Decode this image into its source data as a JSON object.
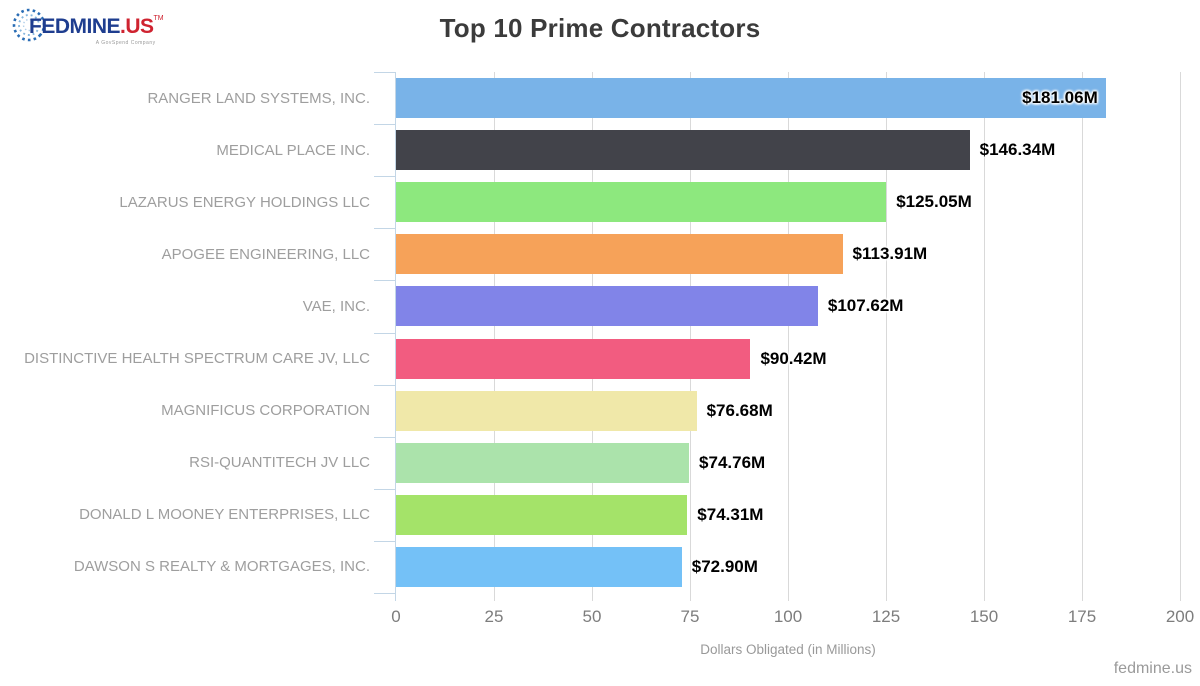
{
  "logo": {
    "brand_primary": "FEDMINE",
    "brand_suffix": ".US",
    "trademark": "TM",
    "tagline": "A GovSpend Company"
  },
  "footer": {
    "watermark": "fedmine.us"
  },
  "chart_data": {
    "type": "bar",
    "orientation": "horizontal",
    "title": "Top 10 Prime Contractors",
    "xlabel": "Dollars Obligated (in Millions)",
    "ylabel": "",
    "xlim": [
      0,
      200
    ],
    "x_ticks": [
      0,
      25,
      50,
      75,
      100,
      125,
      150,
      175,
      200
    ],
    "grid": "vertical",
    "legend": "none",
    "categories": [
      "RANGER LAND SYSTEMS, INC.",
      "MEDICAL PLACE INC.",
      "LAZARUS ENERGY HOLDINGS LLC",
      "APOGEE ENGINEERING, LLC",
      "VAE, INC.",
      "DISTINCTIVE HEALTH SPECTRUM CARE JV, LLC",
      "MAGNIFICUS CORPORATION",
      "RSI-QUANTITECH JV LLC",
      "DONALD L MOONEY ENTERPRISES, LLC",
      "DAWSON S REALTY & MORTGAGES, INC."
    ],
    "values": [
      181.06,
      146.34,
      125.05,
      113.91,
      107.62,
      90.42,
      76.68,
      74.76,
      74.31,
      72.9
    ],
    "value_labels": [
      "$181.06M",
      "$146.34M",
      "$125.05M",
      "$113.91M",
      "$107.62M",
      "$90.42M",
      "$76.68M",
      "$74.76M",
      "$74.31M",
      "$72.90M"
    ],
    "value_label_positions": [
      "inside",
      "outside",
      "outside",
      "outside",
      "outside",
      "outside",
      "outside",
      "outside",
      "outside",
      "outside"
    ],
    "bar_colors": [
      "#79b3e8",
      "#42434a",
      "#8de87e",
      "#f6a259",
      "#8184e8",
      "#f25c80",
      "#f0e8a9",
      "#abe3ab",
      "#a4e369",
      "#74c1f7"
    ],
    "axis_color": "#c3d6e6",
    "grid_color": "#d9d9d9"
  }
}
